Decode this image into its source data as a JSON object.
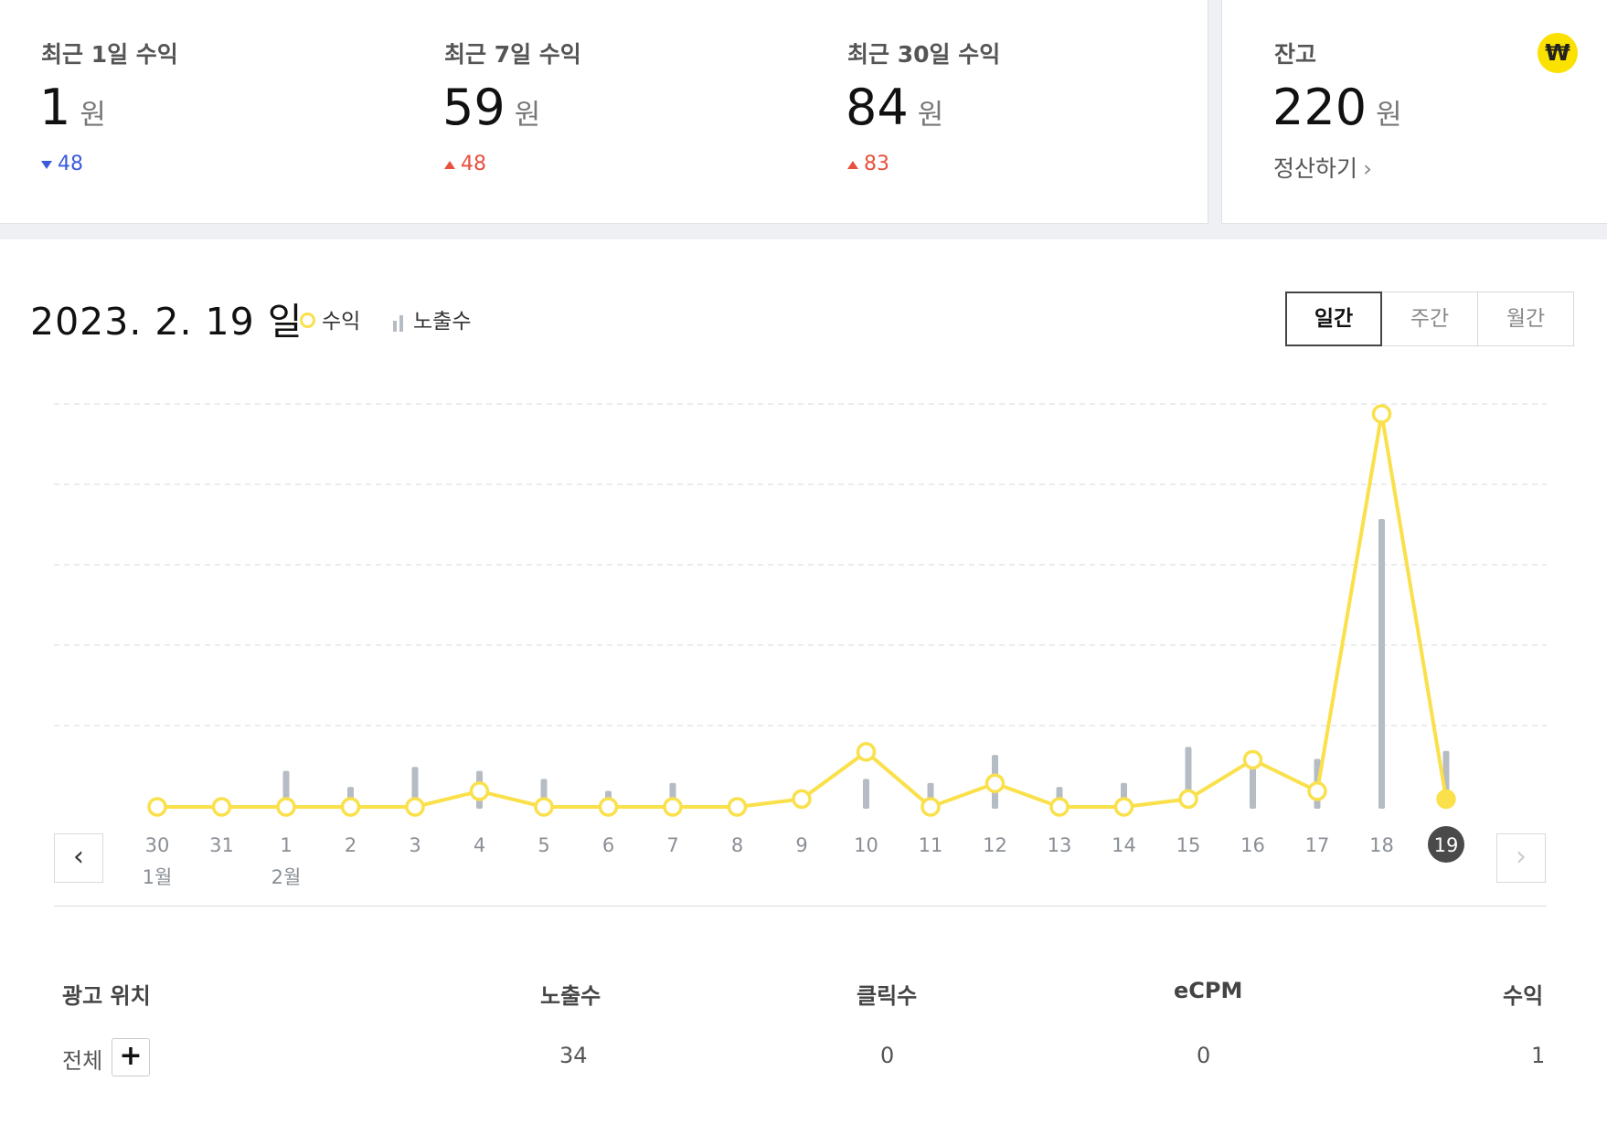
{
  "summary": {
    "stats": [
      {
        "label": "최근 1일 수익",
        "value": "1",
        "unit": "원",
        "delta": "48",
        "direction": "down"
      },
      {
        "label": "최근 7일 수익",
        "value": "59",
        "unit": "원",
        "delta": "48",
        "direction": "up"
      },
      {
        "label": "최근 30일 수익",
        "value": "84",
        "unit": "원",
        "delta": "83",
        "direction": "up"
      }
    ],
    "balance": {
      "label": "잔고",
      "value": "220",
      "unit": "원",
      "icon": "won-icon",
      "icon_glyph": "₩",
      "settle_label": "정산하기"
    }
  },
  "chart_header": {
    "date_title": "2023. 2. 19 일",
    "legend": {
      "revenue": "수익",
      "impressions": "노출수"
    },
    "period_tabs": [
      "일간",
      "주간",
      "월간"
    ],
    "active_tab": "일간"
  },
  "chart_data": {
    "type": "line",
    "x": [
      "30",
      "31",
      "1",
      "2",
      "3",
      "4",
      "5",
      "6",
      "7",
      "8",
      "9",
      "10",
      "11",
      "12",
      "13",
      "14",
      "15",
      "16",
      "17",
      "18",
      "19"
    ],
    "month_labels": [
      {
        "index": 0,
        "label": "1월"
      },
      {
        "index": 2,
        "label": "2월"
      }
    ],
    "selected_index": 20,
    "series": [
      {
        "name": "수익",
        "kind": "line",
        "color": "#fae04a",
        "values": [
          0,
          0,
          0,
          0,
          0,
          4,
          0,
          0,
          0,
          0,
          2,
          14,
          0,
          6,
          0,
          0,
          2,
          12,
          4,
          100,
          2
        ]
      },
      {
        "name": "노출수",
        "kind": "bar",
        "color": "#b6bcc4",
        "values": [
          0,
          0,
          9,
          5,
          10,
          9,
          7,
          4,
          6,
          0,
          3,
          7,
          6,
          13,
          5,
          6,
          15,
          12,
          12,
          72,
          14
        ]
      }
    ],
    "ylim": [
      0,
      100
    ],
    "grid": true
  },
  "table": {
    "headers": [
      "광고 위치",
      "노출수",
      "클릭수",
      "eCPM",
      "수익"
    ],
    "rows": [
      {
        "placement": "전체",
        "impressions": "34",
        "clicks": "0",
        "ecpm": "0",
        "revenue": "1"
      }
    ]
  }
}
